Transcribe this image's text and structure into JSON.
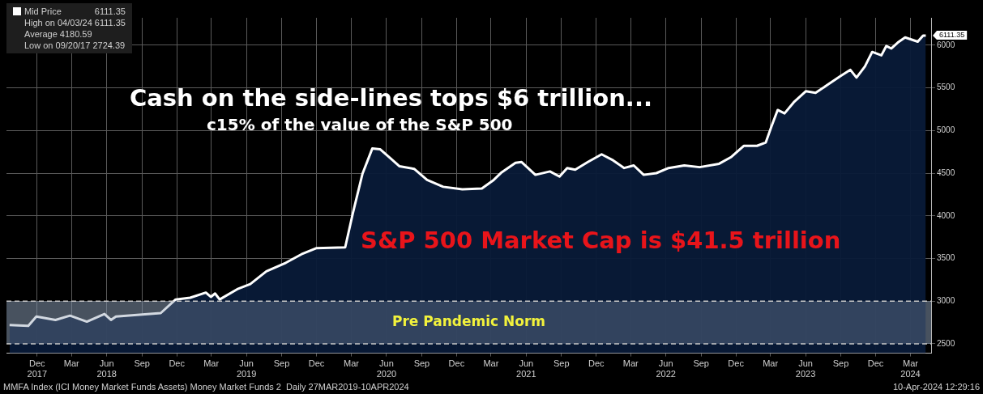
{
  "chart_data": {
    "type": "area",
    "title": "Cash on the side-lines tops $6 trillion...",
    "subtitle": "c15% of the value of the S&P 500",
    "x": [
      "2017-09-20",
      "2017-11-08",
      "2017-11-29",
      "2018-01-18",
      "2018-02-25",
      "2018-04-10",
      "2018-05-26",
      "2018-06-12",
      "2018-06-25",
      "2018-10-20",
      "2018-11-28",
      "2019-01-05",
      "2019-02-15",
      "2019-02-28",
      "2019-03-11",
      "2019-03-23",
      "2019-05-08",
      "2019-06-11",
      "2019-07-23",
      "2019-09-12",
      "2019-10-23",
      "2019-11-30",
      "2020-02-14",
      "2020-03-05",
      "2020-03-30",
      "2020-04-25",
      "2020-05-15",
      "2020-06-10",
      "2020-07-05",
      "2020-08-12",
      "2020-09-15",
      "2020-10-27",
      "2020-12-16",
      "2021-02-05",
      "2021-03-08",
      "2021-03-29",
      "2021-05-04",
      "2021-05-20",
      "2021-06-25",
      "2021-08-02",
      "2021-08-27",
      "2021-09-16",
      "2021-10-07",
      "2021-11-09",
      "2021-12-15",
      "2022-01-14",
      "2022-02-12",
      "2022-03-09",
      "2022-04-04",
      "2022-05-07",
      "2022-06-08",
      "2022-07-19",
      "2022-08-28",
      "2022-10-18",
      "2022-11-19",
      "2022-12-22",
      "2023-01-25",
      "2023-02-17",
      "2023-03-04",
      "2023-03-20",
      "2023-04-07",
      "2023-05-01",
      "2023-06-02",
      "2023-06-27",
      "2023-07-30",
      "2023-09-01",
      "2023-09-26",
      "2023-10-12",
      "2023-11-03",
      "2023-11-22",
      "2023-12-16",
      "2023-12-29",
      "2024-01-11",
      "2024-01-28",
      "2024-02-16",
      "2024-03-20",
      "2024-04-03",
      "2024-04-10"
    ],
    "series": [
      {
        "name": "Mid Price",
        "color": "#ffffff",
        "values": [
          2720,
          2710,
          2820,
          2780,
          2830,
          2760,
          2850,
          2780,
          2820,
          2860,
          3020,
          3040,
          3100,
          3050,
          3090,
          3020,
          3140,
          3200,
          3350,
          3450,
          3550,
          3620,
          3630,
          4030,
          4490,
          4790,
          4780,
          4680,
          4580,
          4550,
          4420,
          4340,
          4310,
          4320,
          4420,
          4510,
          4620,
          4630,
          4480,
          4520,
          4460,
          4560,
          4540,
          4630,
          4720,
          4650,
          4560,
          4590,
          4480,
          4500,
          4560,
          4590,
          4570,
          4610,
          4690,
          4820,
          4820,
          4860,
          5050,
          5240,
          5200,
          5330,
          5460,
          5440,
          5540,
          5640,
          5710,
          5620,
          5750,
          5920,
          5880,
          5990,
          5960,
          6030,
          6090,
          6040,
          6111.35,
          6111.35
        ]
      }
    ],
    "xlim": [
      "2017-09-12",
      "2024-04-24"
    ],
    "xticks": [
      {
        "value": "2017-12-01",
        "label": "Dec\n2017"
      },
      {
        "value": "2018-03-01",
        "label": "Mar"
      },
      {
        "value": "2018-06-01",
        "label": "Jun\n2018"
      },
      {
        "value": "2018-09-01",
        "label": "Sep"
      },
      {
        "value": "2018-12-01",
        "label": "Dec"
      },
      {
        "value": "2019-03-01",
        "label": "Mar"
      },
      {
        "value": "2019-06-01",
        "label": "Jun\n2019"
      },
      {
        "value": "2019-09-01",
        "label": "Sep"
      },
      {
        "value": "2019-12-01",
        "label": "Dec"
      },
      {
        "value": "2020-03-01",
        "label": "Mar"
      },
      {
        "value": "2020-06-01",
        "label": "Jun\n2020"
      },
      {
        "value": "2020-09-01",
        "label": "Sep"
      },
      {
        "value": "2020-12-01",
        "label": "Dec"
      },
      {
        "value": "2021-03-01",
        "label": "Mar"
      },
      {
        "value": "2021-06-01",
        "label": "Jun\n2021"
      },
      {
        "value": "2021-09-01",
        "label": "Sep"
      },
      {
        "value": "2021-12-01",
        "label": "Dec"
      },
      {
        "value": "2022-03-01",
        "label": "Mar"
      },
      {
        "value": "2022-06-01",
        "label": "Jun\n2022"
      },
      {
        "value": "2022-09-01",
        "label": "Sep"
      },
      {
        "value": "2022-12-01",
        "label": "Dec"
      },
      {
        "value": "2023-03-01",
        "label": "Mar"
      },
      {
        "value": "2023-06-01",
        "label": "Jun\n2023"
      },
      {
        "value": "2023-09-01",
        "label": "Sep"
      },
      {
        "value": "2023-12-01",
        "label": "Dec"
      },
      {
        "value": "2024-03-01",
        "label": "Mar\n2024"
      }
    ],
    "ylim": [
      2390,
      6320
    ],
    "yticks": [
      2500,
      3000,
      3500,
      4000,
      4500,
      5000,
      5500,
      6000
    ],
    "grid": true,
    "legend": "top left",
    "bands": [
      {
        "axis": "y",
        "from": 2500,
        "to": 3000,
        "label": "Pre Pandemic Norm",
        "color": "#7f8fa6"
      }
    ],
    "annotations": [
      "6111.35",
      "High on 04/03/24 6111.35",
      "Average 4180.59",
      "Low on 09/20/17 2724.39",
      "S&P 500 Market Cap is $41.5 trillion",
      "MMFA Index (ICI Money Market Funds Assets) Money Market Funds 2  Daily 27MAR2019-10APR2024",
      "10-Apr-2024 12:29:16",
      {
        "text": "6111.35",
        "x": "2024-04-10",
        "y": 6111.35
      }
    ]
  }
}
